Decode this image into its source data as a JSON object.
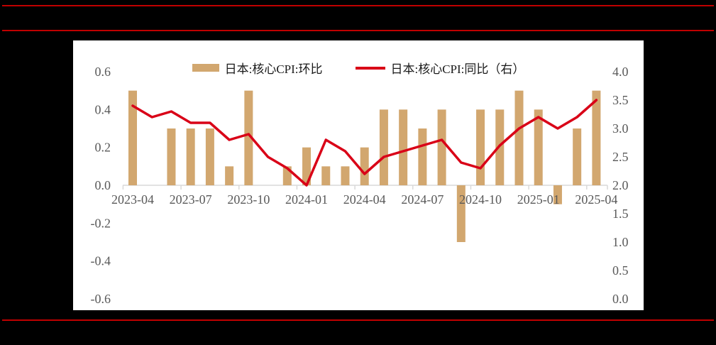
{
  "page": {
    "background": "#000000",
    "panel_background": "#FFFFFF",
    "rule_color": "#C00000"
  },
  "chart_data": {
    "type": "combo",
    "title": "",
    "x": [
      "2023-04",
      "2023-05",
      "2023-06",
      "2023-07",
      "2023-08",
      "2023-09",
      "2023-10",
      "2023-11",
      "2023-12",
      "2024-01",
      "2024-02",
      "2024-03",
      "2024-04",
      "2024-05",
      "2024-06",
      "2024-07",
      "2024-08",
      "2024-09",
      "2024-10",
      "2024-11",
      "2024-12",
      "2025-01",
      "2025-02",
      "2025-03",
      "2025-04"
    ],
    "x_tick_labels": [
      "2023-04",
      "2023-07",
      "2023-10",
      "2024-01",
      "2024-04",
      "2024-07",
      "2024-10",
      "2025-01",
      "2025-04"
    ],
    "series": [
      {
        "name": "日本:核心CPI:环比",
        "type": "bar",
        "axis": "left",
        "color": "#D2A76F",
        "values": [
          0.5,
          0.0,
          0.3,
          0.3,
          0.3,
          0.1,
          0.5,
          0.0,
          0.1,
          0.2,
          0.1,
          0.1,
          0.2,
          0.4,
          0.4,
          0.3,
          0.4,
          -0.3,
          0.4,
          0.4,
          0.5,
          0.4,
          -0.1,
          0.3,
          0.5
        ]
      },
      {
        "name": "日本:核心CPI:同比（右）",
        "type": "line",
        "axis": "right",
        "color": "#D90017",
        "values": [
          3.4,
          3.2,
          3.3,
          3.1,
          3.1,
          2.8,
          2.9,
          2.5,
          2.3,
          2.0,
          2.8,
          2.6,
          2.2,
          2.5,
          2.6,
          2.7,
          2.8,
          2.4,
          2.3,
          2.7,
          3.0,
          3.2,
          3.0,
          3.2,
          3.5
        ]
      }
    ],
    "left_axis": {
      "range": [
        -0.6,
        0.6
      ],
      "tick_labels": [
        "0.6",
        "0.4",
        "0.2",
        "0.0",
        "-0.2",
        "-0.4",
        "-0.6"
      ]
    },
    "right_axis": {
      "range": [
        0.0,
        4.0
      ],
      "tick_labels": [
        "4.0",
        "3.5",
        "3.0",
        "2.5",
        "2.0",
        "1.5",
        "1.0",
        "0.5",
        "0.0"
      ]
    },
    "legend_position": "top",
    "grid": false,
    "axis_label_color": "#595959",
    "axis_line_color": "#D9D9D9",
    "legend_text_color": "#1A1A1A"
  }
}
